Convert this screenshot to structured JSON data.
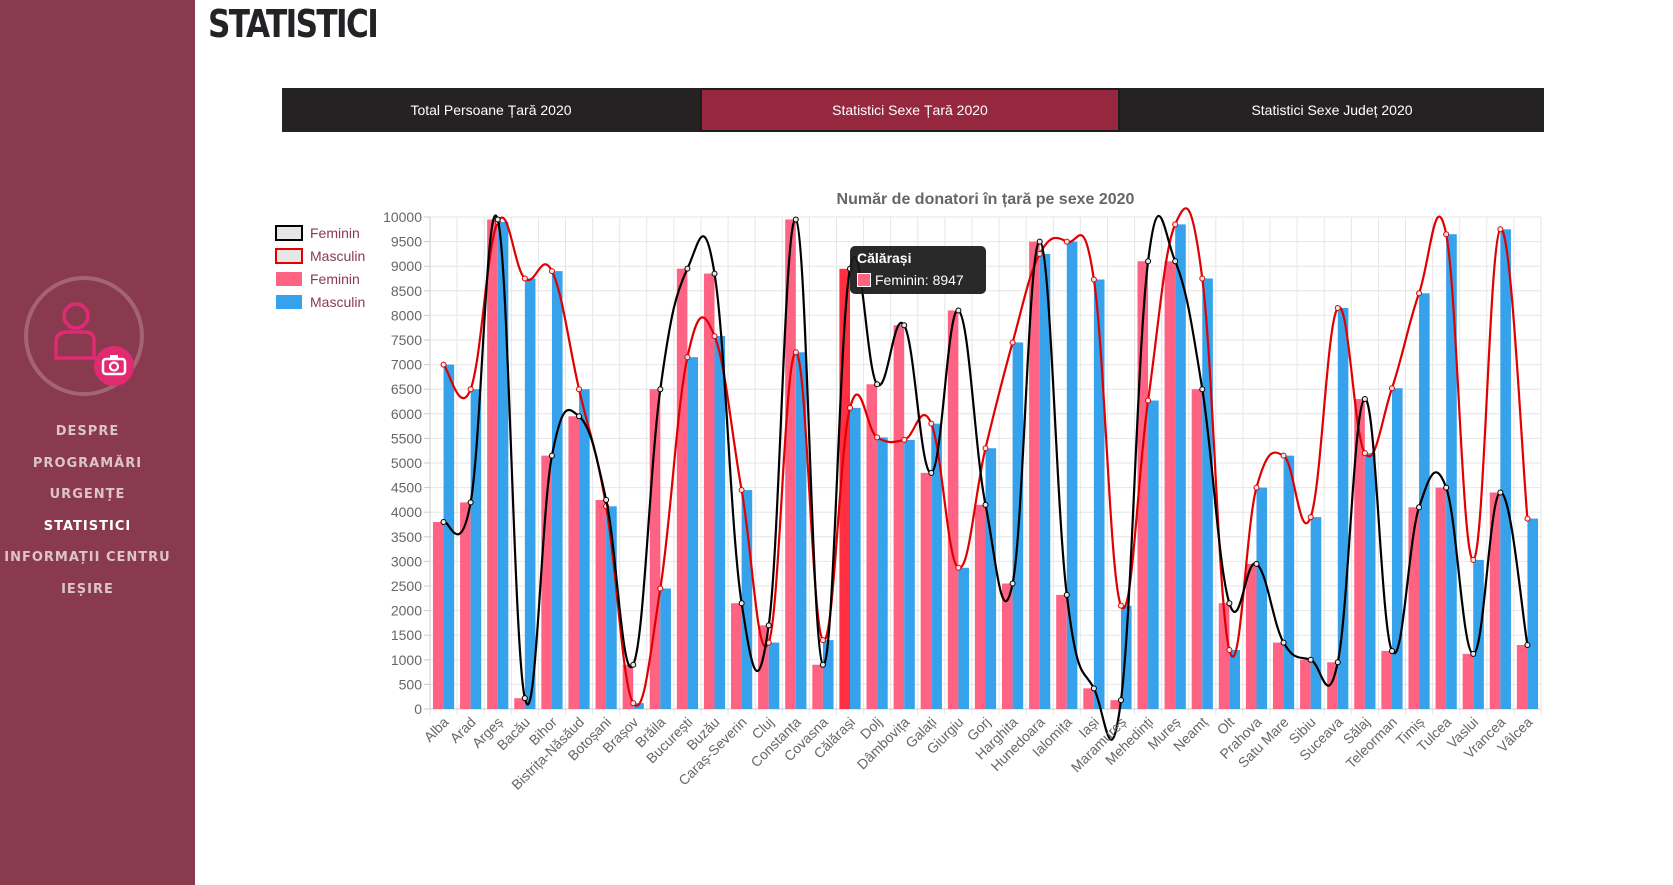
{
  "page_title": "STATISTICI",
  "sidebar": {
    "items": [
      {
        "label": "DESPRE",
        "active": false
      },
      {
        "label": "PROGRAMĂRI",
        "active": false
      },
      {
        "label": "URGENȚE",
        "active": false
      },
      {
        "label": "STATISTICI",
        "active": true
      },
      {
        "label": "INFORMAȚII CENTRU",
        "active": false
      },
      {
        "label": "IEȘIRE",
        "active": false
      }
    ]
  },
  "tabs": [
    {
      "label": "Total Persoane Țară 2020",
      "active": false
    },
    {
      "label": "Statistici Sexe Țară 2020",
      "active": true
    },
    {
      "label": "Statistici Sexe Județ 2020",
      "active": false
    }
  ],
  "colors": {
    "sidebar_bg": "#8a3a4f",
    "tab_bg": "#252223",
    "tab_active_bg": "#95283f",
    "feminin_bar": "#ff6384",
    "masculin_bar": "#36a2eb",
    "feminin_line": "#000000",
    "masculin_line": "#e00000"
  },
  "tooltip": {
    "title": "Călărași",
    "text": "Feminin: 8947"
  },
  "chart_data": {
    "type": "bar",
    "title": "Număr de donatori în țară pe sexe 2020",
    "ylim": [
      0,
      10000
    ],
    "yticks": [
      0,
      500,
      1000,
      1500,
      2000,
      2500,
      3000,
      3500,
      4000,
      4500,
      5000,
      5500,
      6000,
      6500,
      7000,
      7500,
      8000,
      8500,
      9000,
      9500,
      10000
    ],
    "grid": true,
    "legend_position": "left",
    "legend": [
      {
        "label": "Feminin",
        "kind": "line"
      },
      {
        "label": "Masculin",
        "kind": "line"
      },
      {
        "label": "Feminin",
        "kind": "bar"
      },
      {
        "label": "Masculin",
        "kind": "bar"
      }
    ],
    "categories": [
      "Alba",
      "Arad",
      "Argeș",
      "Bacău",
      "Bihor",
      "Bistrița-Năsăud",
      "Botoșani",
      "Brașov",
      "Brăila",
      "București",
      "Buzău",
      "Caraș-Severin",
      "Cluj",
      "Constanța",
      "Covasna",
      "Călărași",
      "Dolj",
      "Dâmbovița",
      "Galați",
      "Giurgiu",
      "Gorj",
      "Harghita",
      "Hunedoara",
      "Ialomița",
      "Iași",
      "Maramureș",
      "Mehedinți",
      "Mureș",
      "Neamț",
      "Olt",
      "Prahova",
      "Satu Mare",
      "Sibiu",
      "Suceava",
      "Sălaj",
      "Teleorman",
      "Timiș",
      "Tulcea",
      "Vaslui",
      "Vrancea",
      "Vâlcea"
    ],
    "series": [
      {
        "name": "Feminin",
        "type": "bar",
        "values": [
          3800,
          4200,
          9950,
          220,
          5150,
          5950,
          4250,
          900,
          6500,
          8950,
          8850,
          2150,
          1700,
          9950,
          900,
          8947,
          6600,
          7800,
          4800,
          8100,
          4150,
          2550,
          9500,
          2320,
          420,
          180,
          9100,
          9100,
          6500,
          2150,
          2950,
          1350,
          1000,
          950,
          6300,
          1180,
          4100,
          4500,
          1120,
          4400,
          1300
        ]
      },
      {
        "name": "Masculin",
        "type": "bar",
        "values": [
          7000,
          6500,
          9900,
          8750,
          8900,
          6500,
          4120,
          120,
          2450,
          7150,
          7580,
          4450,
          1350,
          7250,
          1400,
          6120,
          5520,
          5470,
          5800,
          2870,
          5300,
          7450,
          9250,
          9500,
          8730,
          2100,
          6270,
          9850,
          8750,
          1200,
          4500,
          5150,
          3900,
          8150,
          5200,
          6520,
          8450,
          9650,
          3030,
          9750,
          3870
        ]
      },
      {
        "name": "Feminin",
        "type": "line",
        "values": [
          3800,
          4200,
          9950,
          220,
          5150,
          5950,
          4250,
          900,
          6500,
          8950,
          8850,
          2150,
          1700,
          9950,
          900,
          8947,
          6600,
          7800,
          4800,
          8100,
          4150,
          2550,
          9500,
          2320,
          420,
          180,
          9100,
          9100,
          6500,
          2150,
          2950,
          1350,
          1000,
          950,
          6300,
          1180,
          4100,
          4500,
          1120,
          4400,
          1300
        ]
      },
      {
        "name": "Masculin",
        "type": "line",
        "values": [
          7000,
          6500,
          9900,
          8750,
          8900,
          6500,
          4120,
          120,
          2450,
          7150,
          7580,
          4450,
          1350,
          7250,
          1400,
          6120,
          5520,
          5470,
          5800,
          2870,
          5300,
          7450,
          9250,
          9500,
          8730,
          2100,
          6270,
          9850,
          8750,
          1200,
          4500,
          5150,
          3900,
          8150,
          5200,
          6520,
          8450,
          9650,
          3030,
          9750,
          3870
        ]
      }
    ]
  }
}
